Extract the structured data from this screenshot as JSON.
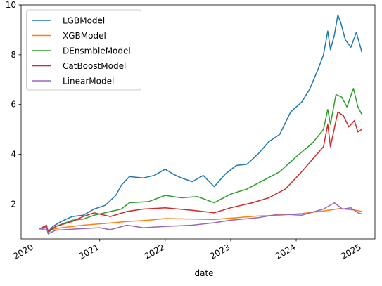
{
  "chart_data": {
    "type": "line",
    "xlabel": "date",
    "ylabel": "",
    "x_ticks": [
      "2020",
      "2021",
      "2022",
      "2023",
      "2024",
      "2025"
    ],
    "y_ticks": [
      2,
      4,
      6,
      8,
      10
    ],
    "xlim": [
      "2019-10-21",
      "2025-03-15"
    ],
    "ylim": [
      0.6,
      10.0
    ],
    "grid": false,
    "legend_position": "upper left",
    "series": [
      {
        "name": "LGBModel",
        "color": "#1f77b4",
        "points": [
          [
            "2020-02-01",
            1.0
          ],
          [
            "2020-03-10",
            1.05
          ],
          [
            "2020-03-20",
            0.9
          ],
          [
            "2020-04-15",
            1.1
          ],
          [
            "2020-06-01",
            1.3
          ],
          [
            "2020-08-01",
            1.5
          ],
          [
            "2020-10-01",
            1.55
          ],
          [
            "2020-12-01",
            1.8
          ],
          [
            "2021-02-01",
            1.95
          ],
          [
            "2021-04-01",
            2.35
          ],
          [
            "2021-05-01",
            2.75
          ],
          [
            "2021-06-15",
            3.1
          ],
          [
            "2021-09-01",
            3.05
          ],
          [
            "2021-11-01",
            3.15
          ],
          [
            "2022-01-01",
            3.4
          ],
          [
            "2022-02-15",
            3.2
          ],
          [
            "2022-04-01",
            3.05
          ],
          [
            "2022-06-01",
            2.9
          ],
          [
            "2022-08-01",
            3.15
          ],
          [
            "2022-10-01",
            2.7
          ],
          [
            "2022-12-01",
            3.2
          ],
          [
            "2023-02-01",
            3.55
          ],
          [
            "2023-04-01",
            3.6
          ],
          [
            "2023-06-01",
            4.0
          ],
          [
            "2023-08-01",
            4.5
          ],
          [
            "2023-10-01",
            4.8
          ],
          [
            "2023-12-01",
            5.7
          ],
          [
            "2024-02-01",
            6.1
          ],
          [
            "2024-03-15",
            6.6
          ],
          [
            "2024-05-01",
            7.4
          ],
          [
            "2024-06-01",
            8.0
          ],
          [
            "2024-06-25",
            8.95
          ],
          [
            "2024-07-10",
            8.2
          ],
          [
            "2024-08-01",
            8.8
          ],
          [
            "2024-08-20",
            9.6
          ],
          [
            "2024-09-05",
            9.3
          ],
          [
            "2024-10-01",
            8.6
          ],
          [
            "2024-11-01",
            8.3
          ],
          [
            "2024-12-01",
            8.9
          ],
          [
            "2025-01-01",
            8.1
          ]
        ]
      },
      {
        "name": "XGBModel",
        "color": "#ff7f0e",
        "points": [
          [
            "2020-02-01",
            1.0
          ],
          [
            "2020-03-20",
            0.95
          ],
          [
            "2020-06-01",
            1.05
          ],
          [
            "2020-10-01",
            1.15
          ],
          [
            "2021-02-01",
            1.22
          ],
          [
            "2021-06-01",
            1.3
          ],
          [
            "2021-10-01",
            1.35
          ],
          [
            "2022-01-01",
            1.42
          ],
          [
            "2022-06-01",
            1.4
          ],
          [
            "2022-10-01",
            1.38
          ],
          [
            "2023-02-01",
            1.45
          ],
          [
            "2023-06-01",
            1.52
          ],
          [
            "2023-10-01",
            1.55
          ],
          [
            "2024-02-01",
            1.62
          ],
          [
            "2024-06-01",
            1.72
          ],
          [
            "2024-09-01",
            1.82
          ],
          [
            "2024-12-01",
            1.75
          ],
          [
            "2025-01-01",
            1.7
          ]
        ]
      },
      {
        "name": "DEnsmbleModel",
        "color": "#2ca02c",
        "points": [
          [
            "2020-02-01",
            1.0
          ],
          [
            "2020-03-10",
            1.1
          ],
          [
            "2020-03-20",
            0.85
          ],
          [
            "2020-05-01",
            1.1
          ],
          [
            "2020-08-01",
            1.35
          ],
          [
            "2020-10-01",
            1.4
          ],
          [
            "2020-12-01",
            1.55
          ],
          [
            "2021-03-01",
            1.7
          ],
          [
            "2021-05-01",
            1.8
          ],
          [
            "2021-06-15",
            2.05
          ],
          [
            "2021-10-01",
            2.1
          ],
          [
            "2022-01-01",
            2.35
          ],
          [
            "2022-04-01",
            2.25
          ],
          [
            "2022-07-01",
            2.3
          ],
          [
            "2022-10-01",
            2.05
          ],
          [
            "2023-01-01",
            2.4
          ],
          [
            "2023-04-01",
            2.6
          ],
          [
            "2023-07-01",
            2.95
          ],
          [
            "2023-10-01",
            3.3
          ],
          [
            "2024-01-01",
            3.9
          ],
          [
            "2024-04-01",
            4.45
          ],
          [
            "2024-06-01",
            5.0
          ],
          [
            "2024-06-25",
            5.8
          ],
          [
            "2024-07-10",
            5.2
          ],
          [
            "2024-08-10",
            6.4
          ],
          [
            "2024-09-10",
            6.3
          ],
          [
            "2024-10-10",
            5.9
          ],
          [
            "2024-11-15",
            6.65
          ],
          [
            "2024-12-10",
            5.9
          ],
          [
            "2025-01-01",
            5.6
          ]
        ]
      },
      {
        "name": "CatBoostModel",
        "color": "#d62728",
        "points": [
          [
            "2020-02-01",
            1.0
          ],
          [
            "2020-03-10",
            1.15
          ],
          [
            "2020-03-20",
            0.9
          ],
          [
            "2020-05-01",
            1.1
          ],
          [
            "2020-08-01",
            1.3
          ],
          [
            "2020-10-01",
            1.5
          ],
          [
            "2020-12-01",
            1.65
          ],
          [
            "2021-03-01",
            1.5
          ],
          [
            "2021-06-01",
            1.7
          ],
          [
            "2021-09-01",
            1.8
          ],
          [
            "2022-01-01",
            1.85
          ],
          [
            "2022-06-01",
            1.75
          ],
          [
            "2022-10-01",
            1.65
          ],
          [
            "2023-01-01",
            1.85
          ],
          [
            "2023-05-01",
            2.05
          ],
          [
            "2023-08-01",
            2.25
          ],
          [
            "2023-11-01",
            2.6
          ],
          [
            "2024-02-01",
            3.3
          ],
          [
            "2024-04-01",
            3.8
          ],
          [
            "2024-06-01",
            4.3
          ],
          [
            "2024-06-25",
            5.2
          ],
          [
            "2024-07-10",
            4.3
          ],
          [
            "2024-08-20",
            5.7
          ],
          [
            "2024-09-20",
            5.55
          ],
          [
            "2024-10-20",
            5.1
          ],
          [
            "2024-11-20",
            5.35
          ],
          [
            "2024-12-10",
            4.9
          ],
          [
            "2025-01-01",
            5.0
          ]
        ]
      },
      {
        "name": "LinearModel",
        "color": "#9467bd",
        "points": [
          [
            "2020-02-01",
            1.0
          ],
          [
            "2020-03-10",
            1.05
          ],
          [
            "2020-03-20",
            0.8
          ],
          [
            "2020-05-01",
            0.95
          ],
          [
            "2020-09-01",
            1.0
          ],
          [
            "2021-01-01",
            1.05
          ],
          [
            "2021-03-01",
            0.97
          ],
          [
            "2021-06-01",
            1.15
          ],
          [
            "2021-09-01",
            1.05
          ],
          [
            "2022-01-01",
            1.1
          ],
          [
            "2022-06-01",
            1.15
          ],
          [
            "2022-10-01",
            1.25
          ],
          [
            "2023-01-01",
            1.35
          ],
          [
            "2023-06-01",
            1.45
          ],
          [
            "2023-10-01",
            1.6
          ],
          [
            "2024-02-01",
            1.55
          ],
          [
            "2024-06-01",
            1.8
          ],
          [
            "2024-08-01",
            2.05
          ],
          [
            "2024-09-15",
            1.8
          ],
          [
            "2024-11-01",
            1.85
          ],
          [
            "2024-12-10",
            1.65
          ],
          [
            "2025-01-01",
            1.6
          ]
        ]
      }
    ]
  }
}
